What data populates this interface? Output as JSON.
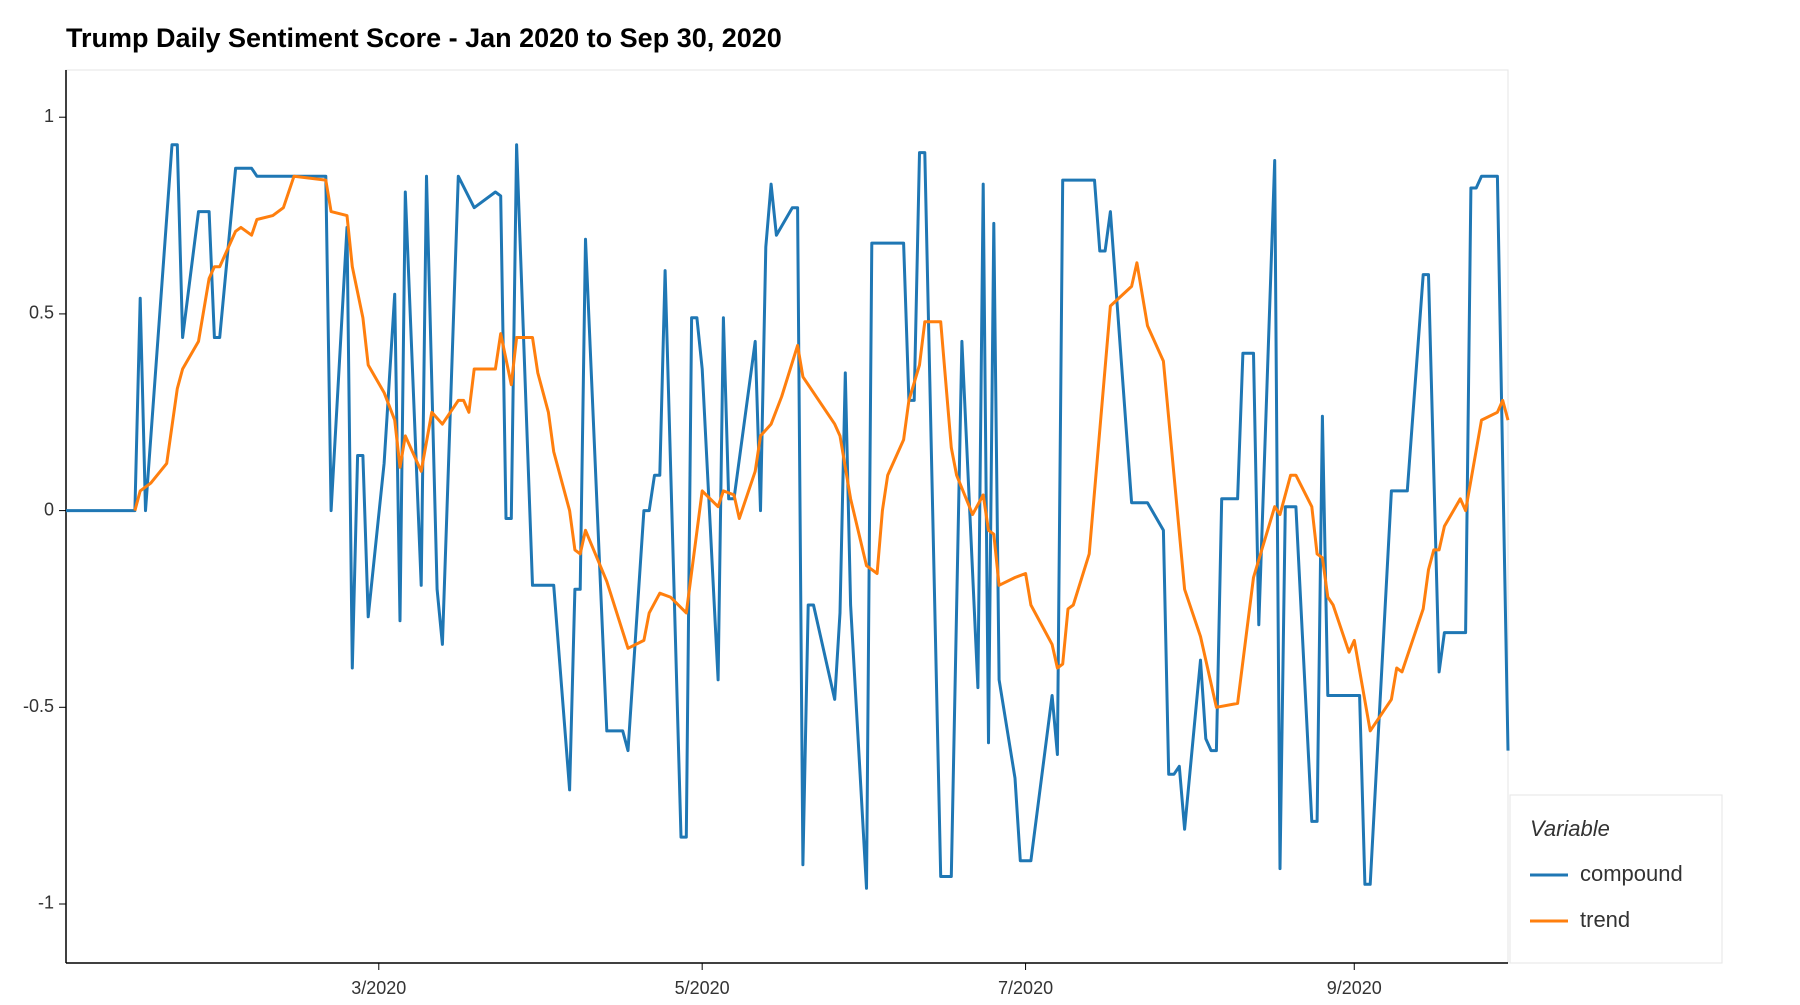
{
  "chart_data": {
    "type": "line",
    "title": "Trump Daily Sentiment Score - Jan 2020 to Sep 30, 2020",
    "legend_title": "Variable",
    "legend_position": "lower right outside",
    "xlim": [
      2,
      274
    ],
    "xticks": [
      {
        "value": 61,
        "label": "3/2020"
      },
      {
        "value": 122,
        "label": "5/2020"
      },
      {
        "value": 183,
        "label": "7/2020"
      },
      {
        "value": 245,
        "label": "9/2020"
      }
    ],
    "ylim": [
      -1.15,
      1.12
    ],
    "yticks": [
      -1,
      -0.5,
      0,
      0.5,
      1
    ],
    "grid": false,
    "series": [
      {
        "name": "compound",
        "color": "#1f77b4",
        "x": [
          2,
          15,
          16,
          17,
          22,
          23,
          24,
          27,
          29,
          30,
          31,
          34,
          37,
          38,
          51,
          52,
          55,
          56,
          57,
          58,
          59,
          62,
          64,
          65,
          66,
          69,
          70,
          72,
          73,
          76,
          79,
          83,
          84,
          85,
          86,
          87,
          90,
          94,
          97,
          98,
          99,
          100,
          104,
          107,
          108,
          111,
          112,
          113,
          114,
          115,
          118,
          119,
          120,
          121,
          122,
          125,
          126,
          127,
          128,
          132,
          133,
          134,
          135,
          136,
          139,
          140,
          141,
          142,
          143,
          147,
          148,
          149,
          150,
          153,
          154,
          160,
          161,
          162,
          163,
          164,
          167,
          169,
          171,
          174,
          175,
          176,
          177,
          178,
          181,
          182,
          184,
          188,
          189,
          190,
          196,
          197,
          198,
          199,
          203,
          206,
          209,
          210,
          211,
          212,
          213,
          216,
          217,
          218,
          219,
          220,
          223,
          224,
          226,
          227,
          230,
          231,
          232,
          234,
          237,
          238,
          239,
          240,
          246,
          247,
          248,
          252,
          255,
          258,
          259,
          261,
          262,
          266,
          267,
          268,
          269,
          272,
          274
        ],
        "values": [
          0,
          0,
          0.54,
          0,
          0.93,
          0.93,
          0.44,
          0.76,
          0.76,
          0.44,
          0.44,
          0.87,
          0.87,
          0.85,
          0.85,
          0,
          0.72,
          -0.4,
          0.14,
          0.14,
          -0.27,
          0.12,
          0.55,
          -0.28,
          0.81,
          -0.19,
          0.85,
          -0.2,
          -0.34,
          0.85,
          0.77,
          0.81,
          0.8,
          -0.02,
          -0.02,
          0.93,
          -0.19,
          -0.19,
          -0.71,
          -0.2,
          -0.2,
          0.69,
          -0.56,
          -0.56,
          -0.61,
          0,
          0,
          0.09,
          0.09,
          0.61,
          -0.83,
          -0.83,
          0.49,
          0.49,
          0.36,
          -0.43,
          0.49,
          0.03,
          0.03,
          0.43,
          0,
          0.67,
          0.83,
          0.7,
          0.77,
          0.77,
          -0.9,
          -0.24,
          -0.24,
          -0.48,
          -0.26,
          0.35,
          -0.24,
          -0.96,
          0.68,
          0.68,
          0.28,
          0.28,
          0.91,
          0.91,
          -0.93,
          -0.93,
          0.43,
          -0.45,
          0.83,
          -0.59,
          0.73,
          -0.43,
          -0.68,
          -0.89,
          -0.89,
          -0.47,
          -0.62,
          0.84,
          0.84,
          0.66,
          0.66,
          0.76,
          0.02,
          0.02,
          -0.05,
          -0.67,
          -0.67,
          -0.65,
          -0.81,
          -0.38,
          -0.58,
          -0.61,
          -0.61,
          0.03,
          0.03,
          0.4,
          0.4,
          -0.29,
          0.89,
          -0.91,
          0.01,
          0.01,
          -0.79,
          -0.79,
          0.24,
          -0.47,
          -0.47,
          -0.95,
          -0.95,
          0.05,
          0.05,
          0.6,
          0.6,
          -0.41,
          -0.31,
          -0.31,
          0.82,
          0.82,
          0.85,
          0.85,
          -0.61
        ]
      },
      {
        "name": "trend",
        "color": "#ff7f0e",
        "x": [
          15,
          16,
          18,
          21,
          23,
          24,
          27,
          29,
          30,
          31,
          34,
          35,
          37,
          38,
          41,
          43,
          45,
          51,
          52,
          55,
          56,
          58,
          59,
          62,
          64,
          65,
          66,
          69,
          71,
          73,
          76,
          77,
          78,
          79,
          83,
          84,
          86,
          87,
          90,
          91,
          93,
          94,
          97,
          98,
          99,
          100,
          104,
          108,
          111,
          112,
          114,
          116,
          119,
          122,
          125,
          126,
          128,
          129,
          132,
          133,
          135,
          137,
          140,
          141,
          147,
          148,
          150,
          153,
          155,
          156,
          157,
          160,
          161,
          163,
          164,
          167,
          169,
          170,
          173,
          175,
          176,
          177,
          178,
          181,
          183,
          184,
          188,
          189,
          190,
          191,
          192,
          195,
          199,
          203,
          204,
          206,
          209,
          213,
          216,
          219,
          223,
          226,
          230,
          231,
          233,
          234,
          237,
          238,
          239,
          240,
          241,
          244,
          245,
          248,
          252,
          253,
          254,
          258,
          259,
          260,
          261,
          262,
          265,
          266,
          269,
          272,
          273,
          274
        ],
        "values": [
          0,
          0.05,
          0.07,
          0.12,
          0.31,
          0.36,
          0.43,
          0.59,
          0.62,
          0.62,
          0.71,
          0.72,
          0.7,
          0.74,
          0.75,
          0.77,
          0.85,
          0.84,
          0.76,
          0.75,
          0.62,
          0.49,
          0.37,
          0.3,
          0.23,
          0.11,
          0.19,
          0.1,
          0.25,
          0.22,
          0.28,
          0.28,
          0.25,
          0.36,
          0.36,
          0.45,
          0.32,
          0.44,
          0.44,
          0.35,
          0.25,
          0.15,
          0,
          -0.1,
          -0.11,
          -0.05,
          -0.18,
          -0.35,
          -0.33,
          -0.26,
          -0.21,
          -0.22,
          -0.26,
          0.05,
          0.01,
          0.05,
          0.04,
          -0.02,
          0.1,
          0.19,
          0.22,
          0.29,
          0.42,
          0.34,
          0.22,
          0.19,
          0.03,
          -0.14,
          -0.16,
          0,
          0.09,
          0.18,
          0.28,
          0.37,
          0.48,
          0.48,
          0.16,
          0.09,
          -0.01,
          0.04,
          -0.05,
          -0.06,
          -0.19,
          -0.17,
          -0.16,
          -0.24,
          -0.34,
          -0.4,
          -0.39,
          -0.25,
          -0.24,
          -0.11,
          0.52,
          0.57,
          0.63,
          0.47,
          0.38,
          -0.2,
          -0.32,
          -0.5,
          -0.49,
          -0.17,
          0.01,
          -0.01,
          0.09,
          0.09,
          0.01,
          -0.11,
          -0.12,
          -0.22,
          -0.24,
          -0.36,
          -0.33,
          -0.56,
          -0.48,
          -0.4,
          -0.41,
          -0.25,
          -0.15,
          -0.1,
          -0.1,
          -0.04,
          0.03,
          0,
          0.23,
          0.25,
          0.28,
          0.23
        ]
      }
    ]
  }
}
